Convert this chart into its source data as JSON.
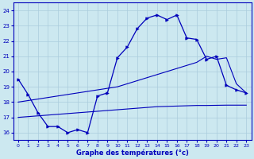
{
  "line1_x": [
    0,
    1,
    2,
    3,
    4,
    5,
    6,
    7,
    8,
    9,
    10,
    11,
    12,
    13,
    14,
    15,
    16,
    17,
    18,
    19,
    20,
    21,
    22,
    23
  ],
  "line1_y": [
    19.5,
    18.5,
    17.3,
    16.4,
    16.4,
    16.0,
    16.2,
    16.0,
    18.4,
    18.6,
    20.9,
    21.6,
    22.8,
    23.5,
    23.7,
    23.4,
    23.7,
    22.2,
    22.1,
    20.8,
    21.0,
    19.1,
    18.8,
    18.6
  ],
  "line3_x": [
    0,
    23
  ],
  "line3_y": [
    17.0,
    17.8
  ],
  "bg_color": "#cce8f0",
  "grid_color": "#aaccdd",
  "line_color": "#0000bb",
  "xlabel": "Graphe des températures (°c)",
  "xlim": [
    -0.5,
    23.5
  ],
  "ylim": [
    15.5,
    24.5
  ],
  "yticks": [
    16,
    17,
    18,
    19,
    20,
    21,
    22,
    23,
    24
  ],
  "xticks": [
    0,
    1,
    2,
    3,
    4,
    5,
    6,
    7,
    8,
    9,
    10,
    11,
    12,
    13,
    14,
    15,
    16,
    17,
    18,
    19,
    20,
    21,
    22,
    23
  ],
  "line2_full_x": [
    0,
    1,
    2,
    3,
    4,
    5,
    6,
    7,
    8,
    9,
    10,
    11,
    12,
    13,
    14,
    15,
    16,
    17,
    18,
    19,
    20,
    21,
    22,
    23
  ],
  "line2_full_y": [
    18.0,
    18.1,
    18.2,
    18.3,
    18.4,
    18.5,
    18.6,
    18.7,
    18.8,
    18.9,
    19.0,
    19.2,
    19.4,
    19.6,
    19.8,
    20.0,
    20.2,
    20.4,
    20.6,
    21.0,
    20.8,
    20.9,
    19.2,
    18.6
  ],
  "line3_full_x": [
    0,
    1,
    2,
    3,
    4,
    5,
    6,
    7,
    8,
    9,
    10,
    11,
    12,
    13,
    14,
    15,
    16,
    17,
    18,
    19,
    20,
    21,
    22,
    23
  ],
  "line3_full_y": [
    17.0,
    17.05,
    17.1,
    17.15,
    17.2,
    17.25,
    17.3,
    17.35,
    17.4,
    17.45,
    17.5,
    17.55,
    17.6,
    17.65,
    17.7,
    17.72,
    17.74,
    17.76,
    17.78,
    17.78,
    17.79,
    17.8,
    17.8,
    17.8
  ]
}
